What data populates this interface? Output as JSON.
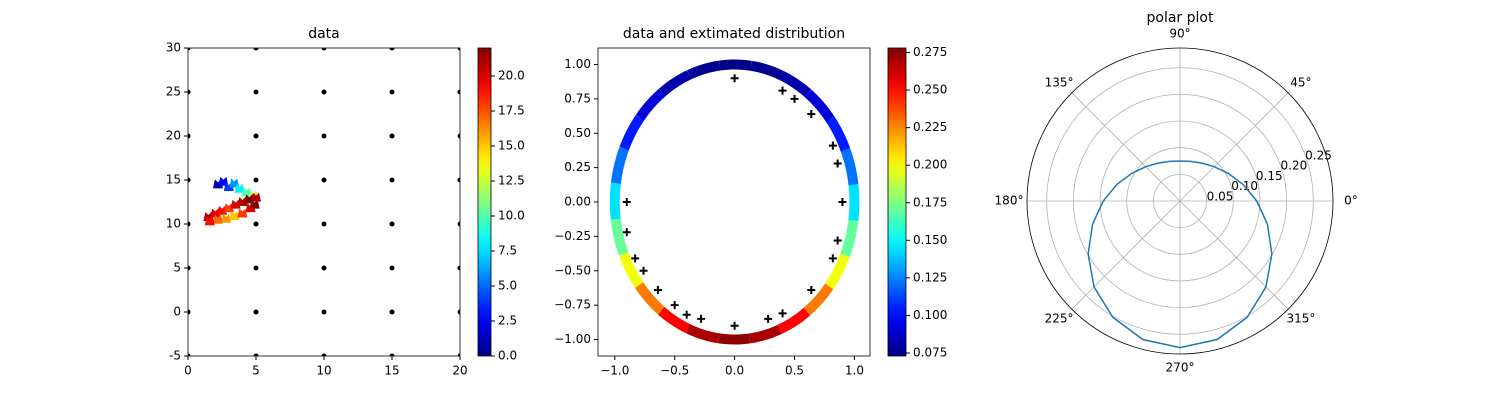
{
  "chart_data": [
    {
      "type": "scatter",
      "title": "data",
      "xlim": [
        0,
        20
      ],
      "ylim": [
        -5,
        30
      ],
      "xticks": [
        0,
        5,
        10,
        15,
        20
      ],
      "yticks": [
        -5,
        0,
        5,
        10,
        15,
        20,
        25,
        30
      ],
      "series": [
        {
          "color": "#000000",
          "marker": "dot",
          "x": [
            0,
            0,
            0,
            0,
            0,
            0,
            0,
            0,
            5,
            5,
            5,
            5,
            5,
            5,
            5,
            5,
            10,
            10,
            10,
            10,
            10,
            10,
            10,
            10,
            15,
            15,
            15,
            15,
            15,
            15,
            15,
            15,
            20,
            20,
            20,
            20,
            20,
            20,
            20,
            20
          ],
          "y": [
            -5,
            0,
            5,
            10,
            15,
            20,
            25,
            30,
            -5,
            0,
            5,
            10,
            15,
            20,
            25,
            30,
            -5,
            0,
            5,
            10,
            15,
            20,
            25,
            30,
            -5,
            0,
            5,
            10,
            15,
            20,
            25,
            30,
            -5,
            0,
            5,
            10,
            15,
            20,
            25,
            30
          ]
        },
        {
          "marker": "arrow",
          "x": [
            2.2,
            2.6,
            3.0,
            3.4,
            3.8,
            4.3,
            4.8,
            1.5,
            2.0,
            2.5,
            3.0,
            3.5,
            4.0,
            4.5,
            5.0,
            2.2,
            2.8,
            3.4,
            4.0,
            4.6,
            4.9,
            1.6
          ],
          "y": [
            14.5,
            14.8,
            14.2,
            14.6,
            14.0,
            13.6,
            13.2,
            10.8,
            11.2,
            11.5,
            11.8,
            12.2,
            12.5,
            12.8,
            13.0,
            10.5,
            10.6,
            10.9,
            11.2,
            11.8,
            12.2,
            10.3
          ],
          "c": [
            1,
            2.5,
            4,
            6,
            8,
            10,
            12,
            21,
            20,
            19,
            18,
            20,
            21,
            22,
            21,
            17,
            16,
            15,
            18,
            20,
            22,
            19
          ]
        }
      ],
      "colorbar": {
        "colormap": "jet",
        "clim": [
          0,
          22
        ],
        "ticks": [
          {
            "value": 0,
            "label": "0.0"
          },
          {
            "value": 2.5,
            "label": "2.5"
          },
          {
            "value": 5,
            "label": "5.0"
          },
          {
            "value": 7.5,
            "label": "7.5"
          },
          {
            "value": 10,
            "label": "10.0"
          },
          {
            "value": 12.5,
            "label": "12.5"
          },
          {
            "value": 15,
            "label": "15.0"
          },
          {
            "value": 17.5,
            "label": "17.5"
          },
          {
            "value": 20,
            "label": "20.0"
          }
        ]
      }
    },
    {
      "type": "scatter",
      "title": "data and extimated distribution",
      "xlim": [
        -1.14,
        1.13
      ],
      "ylim": [
        -1.12,
        1.12
      ],
      "xticks": [
        {
          "value": -1,
          "label": "−1.0"
        },
        {
          "value": -0.5,
          "label": "−0.5"
        },
        {
          "value": 0,
          "label": "0.0"
        },
        {
          "value": 0.5,
          "label": "0.5"
        },
        {
          "value": 1,
          "label": "1.0"
        }
      ],
      "yticks": [
        {
          "value": -1,
          "label": "−1.00"
        },
        {
          "value": -0.75,
          "label": "−0.75"
        },
        {
          "value": -0.5,
          "label": "−0.50"
        },
        {
          "value": -0.25,
          "label": "−0.25"
        },
        {
          "value": 0,
          "label": "0.00"
        },
        {
          "value": 0.25,
          "label": "0.25"
        },
        {
          "value": 0.5,
          "label": "0.50"
        },
        {
          "value": 0.75,
          "label": "0.75"
        },
        {
          "value": 1,
          "label": "1.00"
        }
      ],
      "ring": {
        "radius": 1,
        "theta": [
          0,
          15,
          30,
          45,
          60,
          75,
          90,
          105,
          120,
          135,
          150,
          165,
          180,
          195,
          210,
          225,
          240,
          255,
          270,
          285,
          300,
          315,
          330,
          345
        ],
        "values": [
          0.144,
          0.122,
          0.104,
          0.091,
          0.082,
          0.077,
          0.075,
          0.077,
          0.082,
          0.091,
          0.104,
          0.122,
          0.144,
          0.17,
          0.199,
          0.228,
          0.252,
          0.269,
          0.275,
          0.269,
          0.252,
          0.228,
          0.199,
          0.17
        ]
      },
      "series": [
        {
          "color": "#000000",
          "marker": "plus",
          "x": [
            0,
            0.4,
            0.5,
            0.64,
            0.82,
            0.86,
            0.9,
            0.86,
            0.82,
            0.64,
            0.4,
            0.28,
            0,
            -0.28,
            -0.4,
            -0.5,
            -0.64,
            -0.76,
            -0.83,
            -0.9,
            -0.9
          ],
          "y": [
            0.9,
            0.81,
            0.75,
            0.64,
            0.41,
            0.28,
            0,
            -0.28,
            -0.41,
            -0.64,
            -0.81,
            -0.85,
            -0.9,
            -0.85,
            -0.82,
            -0.75,
            -0.64,
            -0.5,
            -0.41,
            -0.22,
            0
          ]
        }
      ],
      "colorbar": {
        "colormap": "jet",
        "clim": [
          0.073,
          0.278
        ],
        "ticks": [
          0.075,
          {
            "value": 0.1,
            "label": "0.100"
          },
          0.125,
          {
            "value": 0.15,
            "label": "0.150"
          },
          0.175,
          {
            "value": 0.2,
            "label": "0.200"
          },
          0.225,
          {
            "value": 0.25,
            "label": "0.250"
          },
          0.275
        ]
      }
    },
    {
      "type": "polar",
      "title": "polar plot",
      "grid": true,
      "rlim": [
        0,
        0.287
      ],
      "rticks": [
        0.05,
        {
          "value": 0.1,
          "label": "0.10"
        },
        0.15,
        {
          "value": 0.2,
          "label": "0.20"
        },
        0.25
      ],
      "thetaticks": [
        {
          "value": 0,
          "label": "0°"
        },
        {
          "value": 45,
          "label": "45°"
        },
        {
          "value": 90,
          "label": "90°"
        },
        {
          "value": 135,
          "label": "135°"
        },
        {
          "value": 180,
          "label": "180°"
        },
        {
          "value": 225,
          "label": "225°"
        },
        {
          "value": 270,
          "label": "270°"
        },
        {
          "value": 315,
          "label": "315°"
        }
      ],
      "series": [
        {
          "color": "#1f77b4",
          "theta": [
            0,
            15,
            30,
            45,
            60,
            75,
            90,
            105,
            120,
            135,
            150,
            165,
            180,
            195,
            210,
            225,
            240,
            255,
            270,
            285,
            300,
            315,
            330,
            345,
            360
          ],
          "r": [
            0.144,
            0.122,
            0.104,
            0.091,
            0.082,
            0.077,
            0.075,
            0.077,
            0.082,
            0.091,
            0.104,
            0.122,
            0.144,
            0.17,
            0.199,
            0.228,
            0.252,
            0.269,
            0.275,
            0.269,
            0.252,
            0.228,
            0.199,
            0.17,
            0.144
          ]
        }
      ]
    }
  ]
}
